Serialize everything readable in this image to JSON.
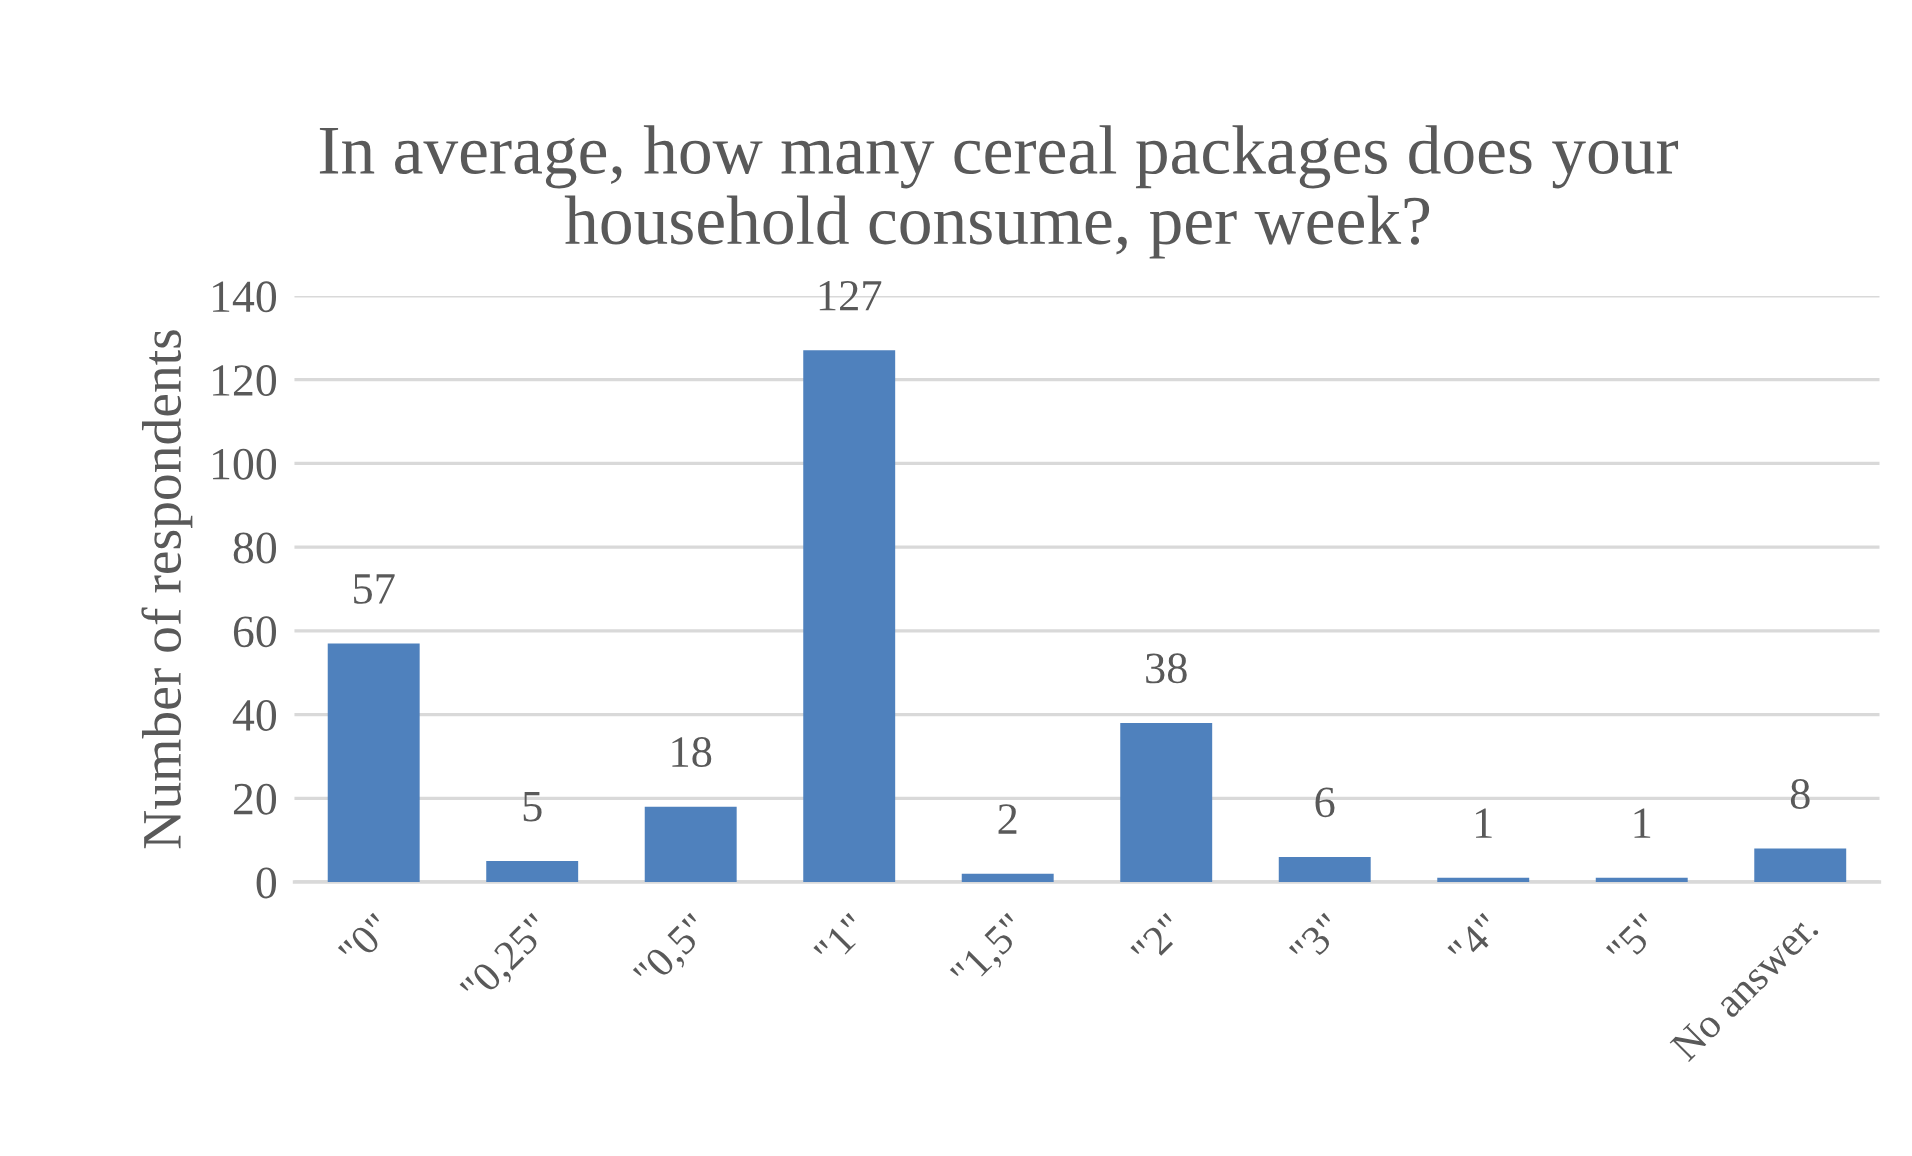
{
  "chart_data": {
    "type": "bar",
    "title": "In average, how many cereal packages does your household consume, per week?",
    "ylabel": "Number of respondents",
    "categories": [
      "\"0\"",
      "\"0,25\"",
      "\"0,5\"",
      "\"1\"",
      "\"1,5\"",
      "\"2\"",
      "\"3\"",
      "\"4\"",
      "\"5\"",
      "No answer."
    ],
    "values": [
      57,
      5,
      18,
      127,
      2,
      38,
      6,
      1,
      1,
      8
    ],
    "color": "#4f81bd",
    "ylim": [
      0,
      140
    ],
    "yticks": [
      0,
      20,
      40,
      60,
      80,
      100,
      120,
      140
    ],
    "grid": "y",
    "data_labels": true
  }
}
